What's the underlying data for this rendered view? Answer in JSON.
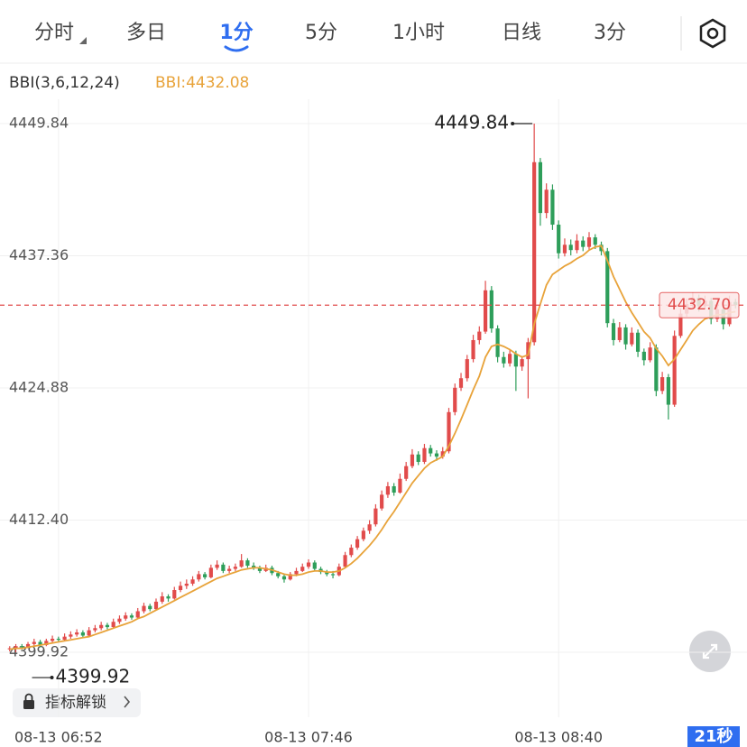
{
  "chart_data": {
    "type": "candlestick",
    "tabs": [
      "分时",
      "多日",
      "1分",
      "5分",
      "1小时",
      "日线",
      "3分"
    ],
    "active_tab": 2,
    "indicator": {
      "name": "BBI(3,6,12,24)",
      "value_label": "BBI:4432.08",
      "color": "#e8a33a"
    },
    "up_color": "#e14b4b",
    "down_color": "#2e9e5a",
    "ylim": [
      4393.79,
      4455.55
    ],
    "yticks": [
      4449.84,
      4437.36,
      4424.88,
      {
        "value": 4412.4,
        "label": "4412.40"
      },
      4399.92
    ],
    "xlim": [
      -1,
      120
    ],
    "xticks": [
      {
        "value": 8,
        "label": "08-13 06:52"
      },
      {
        "value": 49,
        "label": "08-13 07:46"
      },
      {
        "value": 90,
        "label": "08-13 08:40"
      }
    ],
    "grid": true,
    "max": 4449.84,
    "min": 4399.92,
    "current_price": {
      "value": 4432.7,
      "label": "4432.70"
    },
    "lock_button": "指标解锁",
    "countdown": "21秒",
    "ohlc": [
      [
        4400.2,
        4400.5,
        4400.0,
        4400.3
      ],
      [
        4400.3,
        4400.7,
        4399.92,
        4400.5
      ],
      [
        4400.5,
        4400.7,
        4400.2,
        4400.4
      ],
      [
        4400.4,
        4400.9,
        4400.3,
        4400.7
      ],
      [
        4400.7,
        4401.2,
        4400.5,
        4400.9
      ],
      [
        4400.9,
        4401.1,
        4400.4,
        4400.6
      ],
      [
        4400.6,
        4401.2,
        4400.5,
        4401.0
      ],
      [
        4401.0,
        4401.5,
        4400.8,
        4401.2
      ],
      [
        4401.2,
        4401.4,
        4400.9,
        4401.1
      ],
      [
        4401.1,
        4401.7,
        4401.0,
        4401.4
      ],
      [
        4401.4,
        4401.9,
        4401.2,
        4401.6
      ],
      [
        4401.6,
        4402.1,
        4401.4,
        4401.8
      ],
      [
        4401.8,
        4402.0,
        4401.3,
        4401.5
      ],
      [
        4401.5,
        4402.3,
        4401.4,
        4402.0
      ],
      [
        4402.0,
        4402.5,
        4401.8,
        4402.2
      ],
      [
        4402.2,
        4402.8,
        4402.0,
        4402.5
      ],
      [
        4402.5,
        4402.7,
        4402.1,
        4402.3
      ],
      [
        4402.3,
        4403.1,
        4402.2,
        4402.8
      ],
      [
        4402.8,
        4403.4,
        4402.6,
        4403.1
      ],
      [
        4403.1,
        4403.7,
        4402.9,
        4403.4
      ],
      [
        4403.4,
        4403.6,
        4403.0,
        4403.2
      ],
      [
        4403.2,
        4404.1,
        4403.1,
        4403.8
      ],
      [
        4403.8,
        4404.6,
        4403.6,
        4404.3
      ],
      [
        4404.3,
        4404.5,
        4403.8,
        4404.0
      ],
      [
        4404.0,
        4405.0,
        4403.9,
        4404.7
      ],
      [
        4404.7,
        4405.6,
        4404.5,
        4405.2
      ],
      [
        4405.2,
        4405.4,
        4404.7,
        4405.0
      ],
      [
        4405.0,
        4406.1,
        4404.9,
        4405.8
      ],
      [
        4405.8,
        4406.6,
        4405.6,
        4406.2
      ],
      [
        4406.2,
        4406.8,
        4405.9,
        4406.4
      ],
      [
        4406.4,
        4407.1,
        4406.2,
        4406.8
      ],
      [
        4406.8,
        4407.6,
        4406.6,
        4407.3
      ],
      [
        4407.3,
        4407.5,
        4406.8,
        4407.0
      ],
      [
        4407.0,
        4408.2,
        4406.9,
        4407.9
      ],
      [
        4407.9,
        4408.6,
        4407.7,
        4408.2
      ],
      [
        4408.2,
        4408.4,
        4407.4,
        4407.6
      ],
      [
        4407.6,
        4408.1,
        4407.4,
        4407.8
      ],
      [
        4407.8,
        4408.3,
        4407.6,
        4408.0
      ],
      [
        4408.0,
        4409.2,
        4407.9,
        4408.6
      ],
      [
        4408.6,
        4408.8,
        4407.9,
        4408.1
      ],
      [
        4408.1,
        4408.4,
        4407.7,
        4407.9
      ],
      [
        4407.9,
        4408.1,
        4407.4,
        4407.6
      ],
      [
        4407.6,
        4408.2,
        4407.5,
        4407.9
      ],
      [
        4407.9,
        4408.1,
        4407.2,
        4407.4
      ],
      [
        4407.4,
        4407.6,
        4406.9,
        4407.1
      ],
      [
        4407.1,
        4407.3,
        4406.5,
        4406.8
      ],
      [
        4406.8,
        4407.5,
        4406.7,
        4407.3
      ],
      [
        4407.3,
        4407.9,
        4407.1,
        4407.6
      ],
      [
        4407.6,
        4408.3,
        4407.5,
        4408.0
      ],
      [
        4408.0,
        4408.7,
        4407.8,
        4408.4
      ],
      [
        4408.4,
        4408.6,
        4407.6,
        4407.8
      ],
      [
        4407.8,
        4408.0,
        4407.3,
        4407.5
      ],
      [
        4407.5,
        4407.7,
        4407.1,
        4407.3
      ],
      [
        4407.3,
        4407.6,
        4406.9,
        4407.2
      ],
      [
        4407.2,
        4408.3,
        4407.1,
        4408.0
      ],
      [
        4408.0,
        4409.4,
        4407.9,
        4409.1
      ],
      [
        4409.1,
        4410.1,
        4408.9,
        4409.8
      ],
      [
        4409.8,
        4410.9,
        4409.6,
        4410.6
      ],
      [
        4410.6,
        4411.7,
        4410.4,
        4411.4
      ],
      [
        4411.4,
        4412.4,
        4411.1,
        4412.0
      ],
      [
        4412.0,
        4413.9,
        4411.8,
        4413.5
      ],
      [
        4413.5,
        4415.2,
        4413.3,
        4414.8
      ],
      [
        4414.8,
        4416.0,
        4414.5,
        4415.6
      ],
      [
        4415.6,
        4415.9,
        4414.7,
        4415.0
      ],
      [
        4415.0,
        4416.8,
        4414.9,
        4416.3
      ],
      [
        4416.3,
        4417.9,
        4416.1,
        4417.5
      ],
      [
        4417.5,
        4419.1,
        4417.3,
        4418.6
      ],
      [
        4418.6,
        4418.9,
        4417.6,
        4417.9
      ],
      [
        4417.9,
        4419.6,
        4417.7,
        4419.2
      ],
      [
        4419.2,
        4419.5,
        4418.4,
        4418.7
      ],
      [
        4418.7,
        4419.0,
        4418.0,
        4418.4
      ],
      [
        4418.4,
        4419.3,
        4418.2,
        4418.9
      ],
      [
        4418.9,
        4423.0,
        4418.7,
        4422.6
      ],
      [
        4422.6,
        4425.3,
        4422.3,
        4424.9
      ],
      [
        4424.9,
        4426.3,
        4424.6,
        4425.8
      ],
      [
        4425.8,
        4428.0,
        4425.5,
        4427.6
      ],
      [
        4427.6,
        4429.9,
        4427.3,
        4429.4
      ],
      [
        4429.4,
        4430.7,
        4429.0,
        4430.2
      ],
      [
        4430.2,
        4435.0,
        4430.0,
        4434.1
      ],
      [
        4434.1,
        4434.5,
        4430.1,
        4430.5
      ],
      [
        4430.5,
        4430.8,
        4427.3,
        4427.8
      ],
      [
        4427.8,
        4428.3,
        4426.8,
        4427.2
      ],
      [
        4427.2,
        4428.5,
        4426.9,
        4428.1
      ],
      [
        4428.1,
        4428.4,
        4424.6,
        4426.9
      ],
      [
        4426.9,
        4427.9,
        4426.5,
        4427.6
      ],
      [
        4427.6,
        4429.6,
        4423.9,
        4429.2
      ],
      [
        4429.2,
        4449.84,
        4428.9,
        4446.2
      ],
      [
        4446.2,
        4446.6,
        4440.2,
        4441.4
      ],
      [
        4441.4,
        4444.2,
        4440.9,
        4443.6
      ],
      [
        4443.6,
        4444.1,
        4439.8,
        4440.3
      ],
      [
        4440.3,
        4440.7,
        4437.1,
        4437.6
      ],
      [
        4437.6,
        4439.0,
        4437.3,
        4438.4
      ],
      [
        4438.4,
        4438.9,
        4437.4,
        4437.9
      ],
      [
        4437.9,
        4439.4,
        4437.6,
        4438.8
      ],
      [
        4438.8,
        4439.2,
        4437.8,
        4438.2
      ],
      [
        4438.2,
        4439.6,
        4437.9,
        4439.1
      ],
      [
        4439.1,
        4439.4,
        4438.0,
        4438.4
      ],
      [
        4438.4,
        4438.7,
        4437.4,
        4437.8
      ],
      [
        4437.8,
        4438.1,
        4430.6,
        4431.0
      ],
      [
        4431.0,
        4431.4,
        4428.9,
        4429.4
      ],
      [
        4429.4,
        4431.1,
        4429.2,
        4430.6
      ],
      [
        4430.6,
        4430.9,
        4428.5,
        4429.0
      ],
      [
        4429.0,
        4430.6,
        4428.8,
        4430.1
      ],
      [
        4430.1,
        4430.4,
        4427.8,
        4428.3
      ],
      [
        4428.3,
        4428.6,
        4427.0,
        4427.5
      ],
      [
        4427.5,
        4429.2,
        4427.3,
        4428.7
      ],
      [
        4428.7,
        4429.0,
        4424.1,
        4424.6
      ],
      [
        4424.6,
        4426.4,
        4424.3,
        4425.9
      ],
      [
        4425.9,
        4426.2,
        4421.9,
        4423.3
      ],
      [
        4423.3,
        4430.3,
        4423.1,
        4429.8
      ],
      [
        4429.8,
        4432.4,
        4429.6,
        4431.9
      ],
      [
        4431.9,
        4433.3,
        4431.6,
        4432.8
      ],
      [
        4432.8,
        4433.9,
        4432.5,
        4433.4
      ],
      [
        4433.4,
        4433.7,
        4432.1,
        4432.6
      ],
      [
        4432.6,
        4433.6,
        4432.3,
        4433.1
      ],
      [
        4433.1,
        4433.4,
        4430.9,
        4431.4
      ],
      [
        4431.4,
        4432.8,
        4431.1,
        4432.3
      ],
      [
        4432.3,
        4432.6,
        4430.4,
        4430.9
      ],
      [
        4430.9,
        4433.6,
        4430.7,
        4433.0
      ],
      [
        4433.0,
        4433.3,
        4432.4,
        4432.7
      ]
    ],
    "bbi": [
      4400.2,
      4400.3,
      4400.3,
      4400.4,
      4400.5,
      4400.6,
      4400.7,
      4400.8,
      4400.9,
      4401.0,
      4401.1,
      4401.2,
      4401.3,
      4401.4,
      4401.6,
      4401.8,
      4402.0,
      4402.2,
      4402.4,
      4402.6,
      4402.8,
      4403.1,
      4403.3,
      4403.6,
      4403.9,
      4404.2,
      4404.5,
      4404.8,
      4405.1,
      4405.4,
      4405.7,
      4406.0,
      4406.3,
      4406.6,
      4406.9,
      4407.1,
      4407.3,
      4407.5,
      4407.7,
      4407.8,
      4407.9,
      4407.9,
      4407.8,
      4407.7,
      4407.5,
      4407.3,
      4407.2,
      4407.2,
      4407.3,
      4407.5,
      4407.6,
      4407.6,
      4407.5,
      4407.5,
      4407.6,
      4407.9,
      4408.3,
      4408.8,
      4409.4,
      4410.0,
      4410.7,
      4411.5,
      4412.4,
      4413.2,
      4414.1,
      4415.0,
      4415.9,
      4416.6,
      4417.3,
      4417.8,
      4418.1,
      4418.4,
      4419.4,
      4420.6,
      4421.9,
      4423.3,
      4424.7,
      4426.0,
      4427.8,
      4428.8,
      4429.0,
      4428.8,
      4428.5,
      4428.1,
      4427.8,
      4428.0,
      4430.9,
      4432.8,
      4434.6,
      4435.6,
      4436.0,
      4436.4,
      4436.7,
      4437.1,
      4437.4,
      4437.9,
      4438.2,
      4438.3,
      4436.9,
      4435.4,
      4434.2,
      4433.0,
      4432.0,
      4431.1,
      4430.2,
      4429.6,
      4428.6,
      4427.9,
      4427.0,
      4427.6,
      4428.5,
      4429.4,
      4430.3,
      4430.9,
      4431.4,
      4431.6,
      4431.8,
      4431.8,
      4432.0,
      4432.08
    ]
  }
}
